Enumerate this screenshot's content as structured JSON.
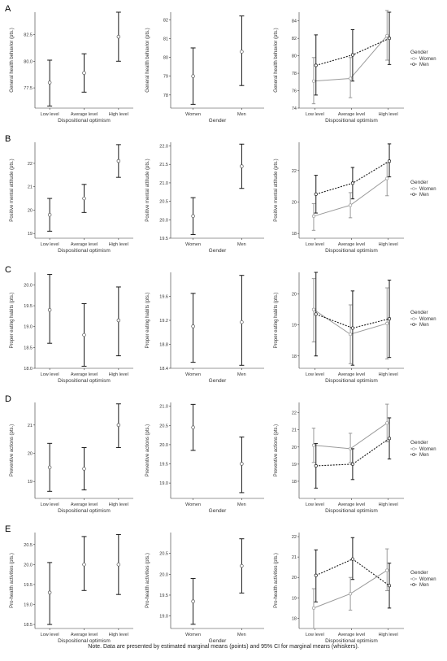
{
  "note": "Note. Data are presented by estimated marginal means (points) and 95% CI for marginal means (whiskers).",
  "colors": {
    "women": "#9a9a9a",
    "men": "#1a1a1a",
    "axis": "#333333"
  },
  "chart_data": [
    {
      "row": "A",
      "type": "scatter",
      "chart": "optimism",
      "ylabel": "General health behavior (pts.)",
      "xlabel": "Dispositional optimism",
      "categories": [
        "Low level",
        "Average level",
        "High level"
      ],
      "ylim": [
        75.6,
        84.6
      ],
      "yticks": [
        77.5,
        80.0,
        82.5
      ],
      "mean": [
        78.0,
        78.9,
        82.3
      ],
      "lower": [
        75.8,
        77.1,
        80.0
      ],
      "upper": [
        80.1,
        80.7,
        84.6
      ]
    },
    {
      "row": "A",
      "type": "scatter",
      "chart": "gender",
      "ylabel": "General health behavior (pts.)",
      "xlabel": "Gender",
      "categories": [
        "Women",
        "Men"
      ],
      "ylim": [
        77.3,
        82.4
      ],
      "yticks": [
        78,
        79,
        80,
        81,
        82
      ],
      "mean": [
        79.0,
        80.3
      ],
      "lower": [
        77.5,
        78.5
      ],
      "upper": [
        80.5,
        82.2
      ]
    },
    {
      "row": "A",
      "type": "line",
      "chart": "interaction",
      "ylabel": "General health behavior (pts.)",
      "xlabel": "Dispositional optimism",
      "legend_title": "Gender",
      "categories": [
        "Low level",
        "Average level",
        "High level"
      ],
      "ylim": [
        74,
        85
      ],
      "yticks": [
        74,
        76,
        78,
        80,
        82,
        84
      ],
      "series": [
        {
          "name": "Women",
          "mean": [
            77.1,
            77.4,
            82.3
          ],
          "lower": [
            74.5,
            75.2,
            79.5
          ],
          "upper": [
            79.8,
            79.8,
            85.2
          ]
        },
        {
          "name": "Men",
          "mean": [
            78.9,
            80.1,
            82.0
          ],
          "lower": [
            75.5,
            77.1,
            79.0
          ],
          "upper": [
            82.4,
            83.0,
            85.0
          ]
        }
      ]
    },
    {
      "row": "B",
      "type": "scatter",
      "chart": "optimism",
      "ylabel": "Positive mental attitude (pts.)",
      "xlabel": "Dispositional optimism",
      "categories": [
        "Low level",
        "Average level",
        "High level"
      ],
      "ylim": [
        18.8,
        22.9
      ],
      "yticks": [
        19,
        20,
        21,
        22
      ],
      "mean": [
        19.8,
        20.5,
        22.1
      ],
      "lower": [
        19.1,
        19.9,
        21.4
      ],
      "upper": [
        20.5,
        21.1,
        22.8
      ]
    },
    {
      "row": "B",
      "type": "scatter",
      "chart": "gender",
      "ylabel": "Positive mental attitude (pts.)",
      "xlabel": "Gender",
      "categories": [
        "Women",
        "Men"
      ],
      "ylim": [
        19.5,
        22.1
      ],
      "yticks": [
        19.5,
        20.0,
        20.5,
        21.0,
        21.5,
        22.0
      ],
      "mean": [
        20.1,
        21.45
      ],
      "lower": [
        19.6,
        20.85
      ],
      "upper": [
        20.6,
        22.05
      ]
    },
    {
      "row": "B",
      "type": "line",
      "chart": "interaction",
      "ylabel": "Positive mental attitude (pts.)",
      "xlabel": "Dispositional optimism",
      "legend_title": "Gender",
      "categories": [
        "Low level",
        "Average level",
        "High level"
      ],
      "ylim": [
        17.7,
        23.8
      ],
      "yticks": [
        18,
        20,
        22
      ],
      "series": [
        {
          "name": "Women",
          "mean": [
            19.1,
            19.8,
            21.5
          ],
          "lower": [
            18.2,
            19.0,
            20.4
          ],
          "upper": [
            19.9,
            20.6,
            22.5
          ]
        },
        {
          "name": "Men",
          "mean": [
            20.5,
            21.2,
            22.6
          ],
          "lower": [
            19.3,
            20.2,
            21.6
          ],
          "upper": [
            21.7,
            22.2,
            23.7
          ]
        }
      ]
    },
    {
      "row": "C",
      "type": "scatter",
      "chart": "optimism",
      "ylabel": "Proper eating habits (pts.)",
      "xlabel": "Dispositional optimism",
      "categories": [
        "Low level",
        "Average level",
        "High level"
      ],
      "ylim": [
        18.0,
        20.3
      ],
      "yticks": [
        18.0,
        18.5,
        19.0,
        19.5,
        20.0
      ],
      "mean": [
        19.4,
        18.8,
        19.15
      ],
      "lower": [
        18.6,
        18.05,
        18.3
      ],
      "upper": [
        20.25,
        19.55,
        19.95
      ]
    },
    {
      "row": "C",
      "type": "scatter",
      "chart": "gender",
      "ylabel": "Proper eating habits (pts.)",
      "xlabel": "Gender",
      "categories": [
        "Women",
        "Men"
      ],
      "ylim": [
        18.4,
        20.0
      ],
      "yticks": [
        18.4,
        18.8,
        19.2,
        19.6
      ],
      "mean": [
        19.1,
        19.17
      ],
      "lower": [
        18.5,
        18.45
      ],
      "upper": [
        19.65,
        19.95
      ]
    },
    {
      "row": "C",
      "type": "line",
      "chart": "interaction",
      "ylabel": "Proper eating habits (pts.)",
      "xlabel": "Dispositional optimism",
      "legend_title": "Gender",
      "categories": [
        "Low level",
        "Average level",
        "High level"
      ],
      "ylim": [
        17.6,
        20.7
      ],
      "yticks": [
        18,
        19,
        20
      ],
      "series": [
        {
          "name": "Women",
          "mean": [
            19.5,
            18.7,
            19.05
          ],
          "lower": [
            18.45,
            17.75,
            17.9
          ],
          "upper": [
            20.5,
            19.65,
            20.2
          ]
        },
        {
          "name": "Men",
          "mean": [
            19.35,
            18.9,
            19.2
          ],
          "lower": [
            18.0,
            17.7,
            17.95
          ],
          "upper": [
            20.7,
            20.1,
            20.45
          ]
        }
      ]
    },
    {
      "row": "D",
      "type": "scatter",
      "chart": "optimism",
      "ylabel": "Preventive actions (pts.)",
      "xlabel": "Dispositional optimism",
      "categories": [
        "Low level",
        "Average level",
        "High level"
      ],
      "ylim": [
        18.4,
        21.8
      ],
      "yticks": [
        19,
        20,
        21
      ],
      "mean": [
        19.5,
        19.45,
        21.0
      ],
      "lower": [
        18.65,
        18.7,
        20.2
      ],
      "upper": [
        20.35,
        20.2,
        21.75
      ]
    },
    {
      "row": "D",
      "type": "scatter",
      "chart": "gender",
      "ylabel": "Preventive actions (pts.)",
      "xlabel": "Gender",
      "categories": [
        "Women",
        "Men"
      ],
      "ylim": [
        18.6,
        21.1
      ],
      "yticks": [
        19.0,
        19.5,
        20.0,
        20.5,
        21.0
      ],
      "mean": [
        20.45,
        19.5
      ],
      "lower": [
        19.85,
        18.75
      ],
      "upper": [
        21.05,
        20.2
      ]
    },
    {
      "row": "D",
      "type": "line",
      "chart": "interaction",
      "ylabel": "Preventive actions (pts.)",
      "xlabel": "Dispositional optimism",
      "legend_title": "Gender",
      "categories": [
        "Low level",
        "Average level",
        "High level"
      ],
      "ylim": [
        17.0,
        22.6
      ],
      "yticks": [
        18,
        19,
        20,
        21,
        22
      ],
      "series": [
        {
          "name": "Women",
          "mean": [
            20.1,
            19.9,
            21.4
          ],
          "lower": [
            19.1,
            19.1,
            20.3
          ],
          "upper": [
            21.1,
            20.8,
            22.5
          ]
        },
        {
          "name": "Men",
          "mean": [
            18.9,
            19.0,
            20.5
          ],
          "lower": [
            17.6,
            18.1,
            19.3
          ],
          "upper": [
            20.2,
            19.9,
            21.7
          ]
        }
      ]
    },
    {
      "row": "E",
      "type": "scatter",
      "chart": "optimism",
      "ylabel": "Pro-health activities (pts.)",
      "xlabel": "Dispositional optimism",
      "categories": [
        "Low level",
        "Average level",
        "High level"
      ],
      "ylim": [
        18.4,
        20.8
      ],
      "yticks": [
        18.5,
        19.0,
        19.5,
        20.0,
        20.5
      ],
      "mean": [
        19.3,
        20.0,
        20.0
      ],
      "lower": [
        18.5,
        19.35,
        19.25
      ],
      "upper": [
        20.05,
        20.7,
        20.75
      ]
    },
    {
      "row": "E",
      "type": "scatter",
      "chart": "gender",
      "ylabel": "Pro-health activities (pts.)",
      "xlabel": "Gender",
      "categories": [
        "Women",
        "Men"
      ],
      "ylim": [
        18.7,
        21.0
      ],
      "yticks": [
        19.0,
        19.5,
        20.0,
        20.5
      ],
      "mean": [
        19.35,
        20.2
      ],
      "lower": [
        18.8,
        19.55
      ],
      "upper": [
        19.9,
        20.85
      ]
    },
    {
      "row": "E",
      "type": "line",
      "chart": "interaction",
      "ylabel": "Pro-health activities (pts.)",
      "xlabel": "Dispositional optimism",
      "legend_title": "Gender",
      "categories": [
        "Low level",
        "Average level",
        "High level"
      ],
      "ylim": [
        17.5,
        22.2
      ],
      "yticks": [
        18,
        19,
        20,
        21,
        22
      ],
      "series": [
        {
          "name": "Women",
          "mean": [
            18.5,
            19.2,
            20.35
          ],
          "lower": [
            17.5,
            18.4,
            19.35
          ],
          "upper": [
            19.45,
            20.0,
            21.4
          ]
        },
        {
          "name": "Men",
          "mean": [
            20.1,
            20.9,
            19.6
          ],
          "lower": [
            18.8,
            19.9,
            18.5
          ],
          "upper": [
            21.35,
            21.95,
            20.7
          ]
        }
      ]
    }
  ]
}
